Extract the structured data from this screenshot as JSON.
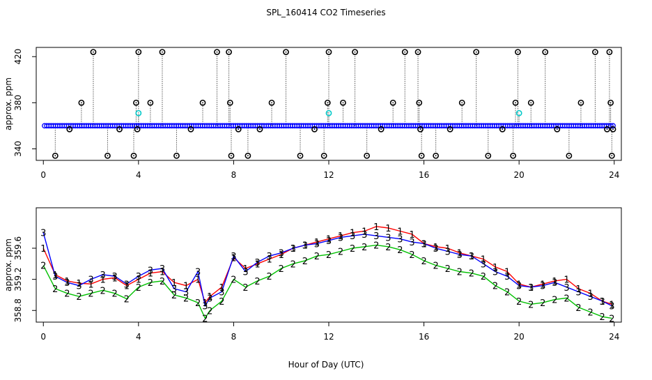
{
  "title": "SPL_160414  CO2 Timeseries",
  "xlabel": "Hour of Day (UTC)",
  "chart_data": [
    {
      "type": "scatter",
      "title": "SPL_160414  CO2 Timeseries",
      "ylabel": "approx. ppm",
      "xlabel": "",
      "xlim": [
        -0.3,
        24.3
      ],
      "ylim": [
        330,
        428
      ],
      "xticks": [
        "0",
        "4",
        "8",
        "12",
        "16",
        "20",
        "24"
      ],
      "yticks": [
        "340",
        "380",
        "420"
      ],
      "baseline": 360,
      "series": [
        {
          "name": "outlier spikes (black)",
          "color": "#000000",
          "marker": "circle",
          "points": [
            [
              0.5,
              334
            ],
            [
              1.1,
              357
            ],
            [
              1.6,
              380
            ],
            [
              2.1,
              424
            ],
            [
              2.7,
              334
            ],
            [
              3.2,
              357
            ],
            [
              3.8,
              334
            ],
            [
              3.9,
              380
            ],
            [
              3.95,
              357
            ],
            [
              4.0,
              424
            ],
            [
              4.5,
              380
            ],
            [
              5.0,
              424
            ],
            [
              5.6,
              334
            ],
            [
              6.2,
              357
            ],
            [
              6.7,
              380
            ],
            [
              7.3,
              424
            ],
            [
              7.8,
              424
            ],
            [
              7.85,
              380
            ],
            [
              7.9,
              334
            ],
            [
              8.2,
              357
            ],
            [
              8.6,
              334
            ],
            [
              9.1,
              357
            ],
            [
              9.6,
              380
            ],
            [
              10.2,
              424
            ],
            [
              10.8,
              334
            ],
            [
              11.4,
              357
            ],
            [
              11.8,
              334
            ],
            [
              11.95,
              380
            ],
            [
              12.0,
              424
            ],
            [
              12.6,
              380
            ],
            [
              13.1,
              424
            ],
            [
              13.6,
              334
            ],
            [
              14.2,
              357
            ],
            [
              14.7,
              380
            ],
            [
              15.2,
              424
            ],
            [
              15.75,
              424
            ],
            [
              15.8,
              380
            ],
            [
              15.85,
              357
            ],
            [
              15.9,
              334
            ],
            [
              16.5,
              334
            ],
            [
              17.1,
              357
            ],
            [
              17.6,
              380
            ],
            [
              18.2,
              424
            ],
            [
              18.7,
              334
            ],
            [
              19.3,
              357
            ],
            [
              19.75,
              334
            ],
            [
              19.85,
              380
            ],
            [
              19.95,
              424
            ],
            [
              20.5,
              380
            ],
            [
              21.1,
              424
            ],
            [
              21.6,
              357
            ],
            [
              22.1,
              334
            ],
            [
              22.6,
              380
            ],
            [
              23.2,
              424
            ],
            [
              23.7,
              357
            ],
            [
              23.8,
              424
            ],
            [
              23.85,
              380
            ],
            [
              23.9,
              334
            ],
            [
              23.95,
              357
            ]
          ]
        },
        {
          "name": "shifted points (cyan)",
          "color": "#00c8c8",
          "marker": "circle",
          "points": [
            [
              4.0,
              371
            ],
            [
              12.0,
              371
            ],
            [
              20.0,
              371
            ]
          ]
        },
        {
          "name": "main series (blue)",
          "color": "#0000ff",
          "marker": "circle",
          "x_range": [
            0.05,
            23.95
          ],
          "value": 360
        }
      ]
    },
    {
      "type": "line",
      "title": "",
      "ylabel": "approx. ppm",
      "xlabel": "Hour of Day (UTC)",
      "xlim": [
        -0.3,
        24.3
      ],
      "ylim": [
        358.65,
        360.12
      ],
      "xticks": [
        "0",
        "4",
        "8",
        "12",
        "16",
        "20",
        "24"
      ],
      "yticks": [
        "358.8",
        "359.2",
        "359.6"
      ],
      "series": [
        {
          "name": "1",
          "color": "#ff0000",
          "x": [
            0,
            0.5,
            1,
            1.5,
            2,
            2.5,
            3,
            3.5,
            4,
            4.5,
            5,
            5.5,
            6,
            6.5,
            6.8,
            7,
            7.5,
            8,
            8.5,
            9,
            9.5,
            10,
            10.5,
            11,
            11.5,
            12,
            12.5,
            13,
            13.5,
            14,
            14.5,
            15,
            15.5,
            16,
            16.5,
            17,
            17.5,
            18,
            18.5,
            19,
            19.5,
            20,
            20.5,
            21,
            21.5,
            22,
            22.5,
            23,
            23.5,
            23.9
          ],
          "values": [
            359.6,
            359.26,
            359.18,
            359.15,
            359.14,
            359.2,
            359.22,
            359.12,
            359.2,
            359.28,
            359.3,
            359.16,
            359.12,
            359.2,
            358.9,
            358.98,
            359.1,
            359.48,
            359.34,
            359.4,
            359.46,
            359.52,
            359.6,
            359.64,
            359.68,
            359.72,
            359.76,
            359.8,
            359.82,
            359.88,
            359.86,
            359.82,
            359.78,
            359.66,
            359.62,
            359.6,
            359.54,
            359.5,
            359.46,
            359.36,
            359.3,
            359.14,
            359.1,
            359.14,
            359.18,
            359.2,
            359.08,
            359.02,
            358.92,
            358.88
          ]
        },
        {
          "name": "2",
          "color": "#00c000",
          "x": [
            0,
            0.5,
            1,
            1.5,
            2,
            2.5,
            3,
            3.5,
            4,
            4.5,
            5,
            5.5,
            6,
            6.5,
            6.8,
            7,
            7.5,
            8,
            8.5,
            9,
            9.5,
            10,
            10.5,
            11,
            11.5,
            12,
            12.5,
            13,
            13.5,
            14,
            14.5,
            15,
            15.5,
            16,
            16.5,
            17,
            17.5,
            18,
            18.5,
            19,
            19.5,
            20,
            20.5,
            21,
            21.5,
            22,
            22.5,
            23,
            23.5,
            23.9
          ],
          "values": [
            359.38,
            359.08,
            359.02,
            358.98,
            359.02,
            359.06,
            359.02,
            358.95,
            359.1,
            359.16,
            359.18,
            359.0,
            358.96,
            358.9,
            358.7,
            358.8,
            358.92,
            359.2,
            359.1,
            359.18,
            359.24,
            359.34,
            359.4,
            359.44,
            359.5,
            359.52,
            359.56,
            359.6,
            359.62,
            359.64,
            359.62,
            359.58,
            359.52,
            359.44,
            359.38,
            359.34,
            359.3,
            359.28,
            359.24,
            359.12,
            359.04,
            358.92,
            358.88,
            358.9,
            358.94,
            358.96,
            358.84,
            358.78,
            358.72,
            358.7
          ]
        },
        {
          "name": "3",
          "color": "#0000ff",
          "x": [
            0,
            0.5,
            1,
            1.5,
            2,
            2.5,
            3,
            3.5,
            4,
            4.5,
            5,
            5.5,
            6,
            6.5,
            6.8,
            7,
            7.5,
            8,
            8.5,
            9,
            9.5,
            10,
            10.5,
            11,
            11.5,
            12,
            12.5,
            13,
            13.5,
            14,
            14.5,
            15,
            15.5,
            16,
            16.5,
            17,
            17.5,
            18,
            18.5,
            19,
            19.5,
            20,
            20.5,
            21,
            21.5,
            22,
            22.5,
            23,
            23.5,
            23.9
          ],
          "values": [
            359.8,
            359.24,
            359.16,
            359.12,
            359.2,
            359.26,
            359.24,
            359.14,
            359.24,
            359.32,
            359.34,
            359.08,
            359.04,
            359.3,
            358.86,
            358.96,
            359.04,
            359.5,
            359.3,
            359.42,
            359.5,
            359.54,
            359.6,
            359.64,
            359.66,
            359.7,
            359.74,
            359.76,
            359.78,
            359.76,
            359.74,
            359.72,
            359.68,
            359.66,
            359.6,
            359.56,
            359.52,
            359.5,
            359.4,
            359.3,
            359.24,
            359.12,
            359.1,
            359.12,
            359.16,
            359.1,
            359.04,
            358.98,
            358.92,
            358.86
          ]
        }
      ]
    }
  ]
}
